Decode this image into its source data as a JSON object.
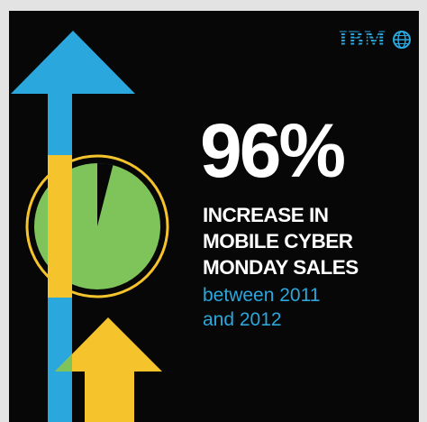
{
  "brand": {
    "logo_text": "IBM",
    "logo_icon": "globe-icon",
    "accent_blue": "#2aa7dd",
    "accent_green": "#7ec45a",
    "accent_yellow": "#f5c42c",
    "background": "#070707"
  },
  "stat": {
    "value": "96%",
    "line1": "INCREASE IN",
    "line2": "MOBILE CYBER",
    "line3": "MONDAY SALES",
    "note1": "between 2011",
    "note2": "and 2012"
  },
  "pie": {
    "percent": 96
  }
}
